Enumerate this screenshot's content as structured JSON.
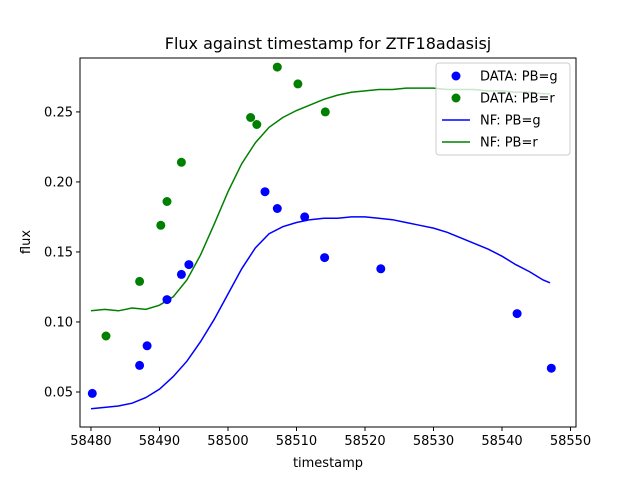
{
  "chart_data": {
    "type": "scatter",
    "title": "Flux against timestamp for ZTF18adasisj",
    "xlabel": "timestamp",
    "ylabel": "flux",
    "xlim": [
      58478.4,
      58550.8
    ],
    "ylim": [
      0.025,
      0.2885
    ],
    "xticks": [
      58480,
      58490,
      58500,
      58510,
      58520,
      58530,
      58540,
      58550
    ],
    "yticks": [
      0.05,
      0.1,
      0.15,
      0.2,
      0.25
    ],
    "grid": false,
    "legend_position": "top-right",
    "colors": {
      "g": "#0000ff",
      "r": "#008000"
    },
    "series": [
      {
        "name": "DATA: PB=g",
        "kind": "scatter",
        "color": "#0000ff",
        "x": [
          58480.2,
          58487.1,
          58488.2,
          58491.1,
          58493.2,
          58494.3,
          58505.4,
          58507.2,
          58511.2,
          58514.1,
          58522.3,
          58542.2,
          58547.2
        ],
        "y": [
          0.049,
          0.069,
          0.083,
          0.116,
          0.134,
          0.141,
          0.193,
          0.181,
          0.175,
          0.146,
          0.138,
          0.106,
          0.067
        ]
      },
      {
        "name": "DATA: PB=r",
        "kind": "scatter",
        "color": "#008000",
        "x": [
          58482.2,
          58487.1,
          58490.2,
          58491.1,
          58493.2,
          58503.3,
          58504.2,
          58507.2,
          58510.2,
          58514.2
        ],
        "y": [
          0.09,
          0.129,
          0.169,
          0.186,
          0.214,
          0.246,
          0.241,
          0.282,
          0.27,
          0.25
        ]
      },
      {
        "name": "NF: PB=g",
        "kind": "line",
        "color": "#0000ff",
        "x": [
          58480,
          58482,
          58484,
          58486,
          58488,
          58490,
          58492,
          58494,
          58496,
          58498,
          58500,
          58502,
          58504,
          58506,
          58508,
          58510,
          58512,
          58514,
          58516,
          58518,
          58520,
          58522,
          58524,
          58526,
          58528,
          58530,
          58532,
          58534,
          58536,
          58538,
          58540,
          58542,
          58544,
          58546,
          58547
        ],
        "y": [
          0.038,
          0.039,
          0.04,
          0.042,
          0.046,
          0.052,
          0.061,
          0.072,
          0.086,
          0.102,
          0.12,
          0.138,
          0.153,
          0.163,
          0.168,
          0.171,
          0.173,
          0.174,
          0.174,
          0.175,
          0.175,
          0.174,
          0.173,
          0.171,
          0.169,
          0.167,
          0.164,
          0.16,
          0.156,
          0.152,
          0.147,
          0.141,
          0.136,
          0.13,
          0.128
        ]
      },
      {
        "name": "NF: PB=r",
        "kind": "line",
        "color": "#008000",
        "x": [
          58480,
          58482,
          58484,
          58486,
          58488,
          58490,
          58492,
          58494,
          58496,
          58498,
          58500,
          58502,
          58504,
          58506,
          58508,
          58510,
          58512,
          58514,
          58516,
          58518,
          58520,
          58522,
          58524,
          58526,
          58528,
          58530,
          58532,
          58534,
          58536,
          58538,
          58540,
          58542,
          58544,
          58546,
          58547
        ],
        "y": [
          0.108,
          0.109,
          0.108,
          0.11,
          0.109,
          0.112,
          0.118,
          0.13,
          0.148,
          0.17,
          0.193,
          0.213,
          0.228,
          0.239,
          0.246,
          0.251,
          0.255,
          0.259,
          0.262,
          0.264,
          0.265,
          0.266,
          0.266,
          0.267,
          0.267,
          0.267,
          0.266,
          0.266,
          0.266,
          0.265,
          0.265,
          0.264,
          0.264,
          0.263,
          0.263
        ]
      }
    ]
  }
}
